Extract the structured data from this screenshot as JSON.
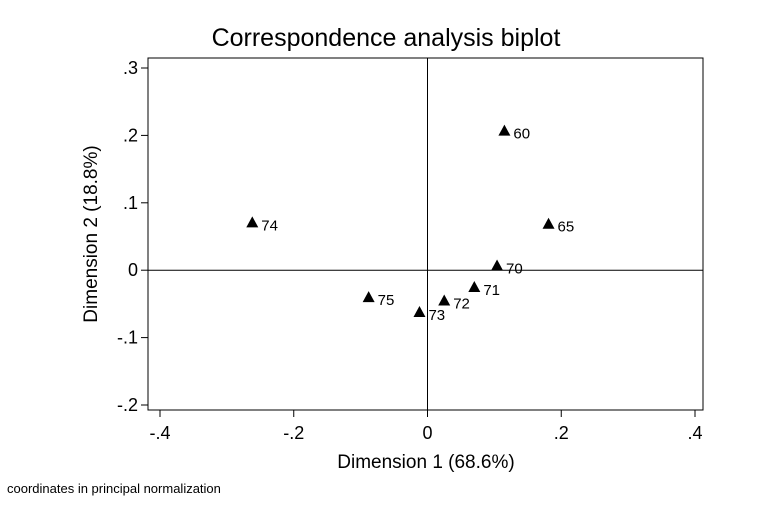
{
  "chart_data": {
    "type": "scatter",
    "title": "Correspondence analysis biplot",
    "xlabel": "Dimension 1 (68.6%)",
    "ylabel": "Dimension 2 (18.8%)",
    "xlim": [
      -0.4,
      0.4
    ],
    "ylim": [
      -0.2,
      0.3
    ],
    "x_ticks": [
      -0.4,
      -0.2,
      0,
      0.2,
      0.4
    ],
    "x_tick_labels": [
      "-.4",
      "-.2",
      "0",
      ".2",
      ".4"
    ],
    "y_ticks": [
      -0.2,
      -0.1,
      0,
      0.1,
      0.2,
      0.3
    ],
    "y_tick_labels": [
      "-.2",
      "-.1",
      "0",
      ".1",
      ".2",
      ".3"
    ],
    "reference_lines": {
      "x": 0,
      "y": 0
    },
    "grid": false,
    "marker": "triangle",
    "points": [
      {
        "label": "60",
        "x": 0.115,
        "y": 0.207
      },
      {
        "label": "65",
        "x": 0.181,
        "y": 0.069
      },
      {
        "label": "70",
        "x": 0.104,
        "y": 0.007
      },
      {
        "label": "71",
        "x": 0.07,
        "y": -0.025
      },
      {
        "label": "72",
        "x": 0.025,
        "y": -0.045
      },
      {
        "label": "73",
        "x": -0.012,
        "y": -0.062
      },
      {
        "label": "74",
        "x": -0.262,
        "y": 0.071
      },
      {
        "label": "75",
        "x": -0.088,
        "y": -0.04
      }
    ]
  },
  "footnote": "coordinates in principal normalization"
}
